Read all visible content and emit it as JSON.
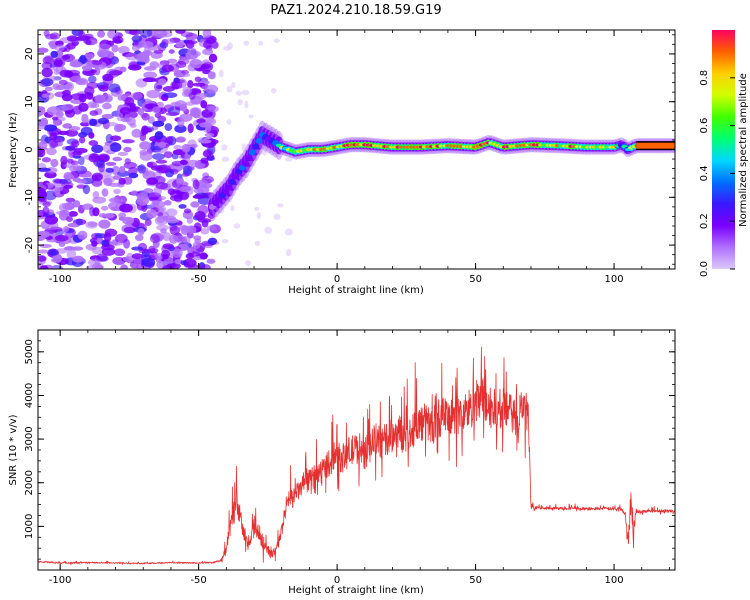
{
  "title": "PAZ1.2024.210.18.59.G19",
  "colors": {
    "series_line": "#e53030",
    "colormap": [
      "#dcc8fa",
      "#b070ff",
      "#7a00ff",
      "#3a18ff",
      "#0070ff",
      "#00d8ff",
      "#00ff70",
      "#40ff00",
      "#d0ff00",
      "#ffd000",
      "#ff6000",
      "#ff0060"
    ]
  },
  "chart_data": [
    {
      "type": "heatmap",
      "xlabel": "Height of straight line (km)",
      "ylabel": "Frequency (Hz)",
      "xlim": [
        -108,
        122
      ],
      "ylim": [
        -25,
        25
      ],
      "x_ticks": [
        -100,
        -50,
        0,
        50,
        100
      ],
      "x_tick_labels": [
        "-100",
        "-50",
        "0",
        "50",
        "100"
      ],
      "y_ticks": [
        -20,
        -10,
        0,
        10,
        20
      ],
      "y_tick_labels": [
        "-20",
        "-10",
        "0",
        "10",
        "20"
      ],
      "grid": false,
      "colorbar": {
        "label": "Normalized spectral amplitude",
        "range": [
          0,
          1
        ],
        "ticks": [
          0.0,
          0.2,
          0.4,
          0.6,
          0.8
        ],
        "tick_labels": [
          "0.0",
          "0.2",
          "0.4",
          "0.6",
          "0.8"
        ]
      },
      "ridge": {
        "x": [
          -45,
          -42,
          -39,
          -36,
          -33,
          -30,
          -27,
          -24,
          -20,
          -15,
          -10,
          -5,
          0,
          5,
          10,
          20,
          30,
          40,
          50,
          55,
          60,
          70,
          80,
          90,
          100,
          103,
          105,
          108,
          115,
          122
        ],
        "frequency": [
          -12,
          -10,
          -8,
          -5,
          -3,
          0,
          3,
          2,
          0.5,
          -0.5,
          0,
          0,
          0.5,
          1,
          1,
          0.5,
          0.5,
          0.8,
          0.5,
          1.5,
          0.5,
          1,
          0.8,
          0.5,
          0.5,
          1,
          0,
          0.8,
          0.8,
          0.8
        ],
        "amplitude": [
          0.3,
          0.35,
          0.4,
          0.4,
          0.4,
          0.45,
          0.5,
          0.45,
          0.6,
          0.7,
          0.75,
          0.8,
          0.85,
          0.9,
          0.95,
          0.9,
          0.9,
          0.85,
          0.9,
          0.85,
          0.9,
          0.85,
          0.8,
          0.85,
          0.8,
          0.3,
          0.6,
          0.9,
          0.95,
          0.95
        ]
      },
      "noise_region": {
        "x": [
          -108,
          -44
        ],
        "frequency": [
          -25,
          25
        ],
        "amplitude": [
          0.05,
          0.25
        ]
      }
    },
    {
      "type": "line",
      "xlabel": "Height of straight line (km)",
      "ylabel": "SNR (10 * v/v)",
      "xlim": [
        -108,
        122
      ],
      "ylim": [
        0,
        5500
      ],
      "x_ticks": [
        -100,
        -50,
        0,
        50,
        100
      ],
      "x_tick_labels": [
        "-100",
        "-50",
        "0",
        "50",
        "100"
      ],
      "y_ticks": [
        1000,
        2000,
        3000,
        4000,
        5000
      ],
      "y_tick_labels": [
        "1000",
        "2000",
        "3000",
        "4000",
        "5000"
      ],
      "grid": false,
      "series": [
        {
          "x": [
            -108,
            -100,
            -90,
            -80,
            -70,
            -60,
            -50,
            -45,
            -42,
            -40,
            -38,
            -36,
            -34,
            -32,
            -30,
            -28,
            -26,
            -24,
            -22,
            -20,
            -18,
            -16,
            -14,
            -12,
            -10,
            -8,
            -6,
            -4,
            -2,
            0,
            2,
            4,
            6,
            8,
            10,
            12,
            14,
            16,
            18,
            20,
            22,
            24,
            26,
            28,
            30,
            32,
            34,
            36,
            38,
            40,
            42,
            44,
            46,
            48,
            50,
            52,
            54,
            56,
            58,
            60,
            62,
            64,
            66,
            68,
            69,
            70,
            72,
            75,
            80,
            85,
            90,
            95,
            100,
            102,
            104,
            105,
            106,
            107,
            108,
            110,
            115,
            122
          ],
          "y": [
            190,
            160,
            170,
            160,
            150,
            170,
            160,
            170,
            220,
            450,
            1200,
            1500,
            900,
            500,
            1000,
            800,
            600,
            350,
            450,
            900,
            1600,
            1650,
            1800,
            2000,
            2050,
            2150,
            2250,
            2400,
            2500,
            2600,
            2550,
            2700,
            2750,
            2800,
            2650,
            2850,
            3000,
            2900,
            3000,
            3100,
            3200,
            3050,
            3100,
            3300,
            3350,
            3400,
            3300,
            3450,
            3550,
            3400,
            3600,
            3500,
            3600,
            3700,
            3800,
            3900,
            3800,
            3700,
            3600,
            3700,
            3600,
            3500,
            3650,
            3700,
            3600,
            1400,
            1430,
            1420,
            1410,
            1420,
            1400,
            1410,
            1400,
            1420,
            1300,
            600,
            1600,
            900,
            1350,
            1340,
            1360,
            1350
          ],
          "noise_amplitude": [
            30,
            25,
            25,
            25,
            25,
            25,
            25,
            30,
            60,
            200,
            600,
            500,
            400,
            200,
            500,
            400,
            300,
            150,
            200,
            300,
            400,
            400,
            400,
            450,
            450,
            500,
            500,
            550,
            600,
            600,
            600,
            650,
            650,
            650,
            650,
            700,
            700,
            700,
            700,
            700,
            750,
            750,
            750,
            800,
            800,
            800,
            800,
            800,
            850,
            850,
            850,
            850,
            900,
            900,
            1000,
            1100,
            1000,
            900,
            900,
            850,
            850,
            800,
            800,
            750,
            700,
            80,
            60,
            60,
            60,
            60,
            60,
            60,
            60,
            60,
            80,
            400,
            600,
            400,
            80,
            60,
            60,
            60
          ]
        }
      ]
    }
  ]
}
